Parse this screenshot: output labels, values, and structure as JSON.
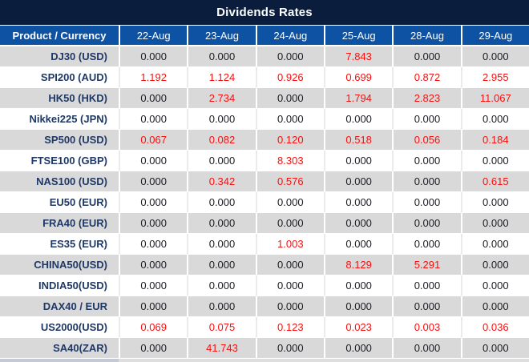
{
  "title": "Dividends Rates",
  "colors": {
    "title_bar_bg": "#0a1d3d",
    "header_bg": "#0e52a3",
    "header_text": "#ffffff",
    "row_gray": "#d9d9d9",
    "row_white": "#ffffff",
    "product_text": "#1f3864",
    "value_text": "#1b1b22",
    "value_red": "#fa0f0f"
  },
  "table": {
    "product_header": "Product / Currency",
    "date_headers": [
      "22-Aug",
      "23-Aug",
      "24-Aug",
      "25-Aug",
      "28-Aug",
      "29-Aug"
    ],
    "rows": [
      {
        "product": "DJ30 (USD)",
        "values": [
          "0.000",
          "0.000",
          "0.000",
          "7.843",
          "0.000",
          "0.000"
        ],
        "red": [
          false,
          false,
          false,
          true,
          false,
          false
        ]
      },
      {
        "product": "SPI200 (AUD)",
        "values": [
          "1.192",
          "1.124",
          "0.926",
          "0.699",
          "0.872",
          "2.955"
        ],
        "red": [
          true,
          true,
          true,
          true,
          true,
          true
        ]
      },
      {
        "product": "HK50 (HKD)",
        "values": [
          "0.000",
          "2.734",
          "0.000",
          "1.794",
          "2.823",
          "11.067"
        ],
        "red": [
          false,
          true,
          false,
          true,
          true,
          true
        ]
      },
      {
        "product": "Nikkei225 (JPN)",
        "values": [
          "0.000",
          "0.000",
          "0.000",
          "0.000",
          "0.000",
          "0.000"
        ],
        "red": [
          false,
          false,
          false,
          false,
          false,
          false
        ]
      },
      {
        "product": "SP500 (USD)",
        "values": [
          "0.067",
          "0.082",
          "0.120",
          "0.518",
          "0.056",
          "0.184"
        ],
        "red": [
          true,
          true,
          true,
          true,
          true,
          true
        ]
      },
      {
        "product": "FTSE100 (GBP)",
        "values": [
          "0.000",
          "0.000",
          "8.303",
          "0.000",
          "0.000",
          "0.000"
        ],
        "red": [
          false,
          false,
          true,
          false,
          false,
          false
        ]
      },
      {
        "product": "NAS100 (USD)",
        "values": [
          "0.000",
          "0.342",
          "0.576",
          "0.000",
          "0.000",
          "0.615"
        ],
        "red": [
          false,
          true,
          true,
          false,
          false,
          true
        ]
      },
      {
        "product": "EU50 (EUR)",
        "values": [
          "0.000",
          "0.000",
          "0.000",
          "0.000",
          "0.000",
          "0.000"
        ],
        "red": [
          false,
          false,
          false,
          false,
          false,
          false
        ]
      },
      {
        "product": "FRA40 (EUR)",
        "values": [
          "0.000",
          "0.000",
          "0.000",
          "0.000",
          "0.000",
          "0.000"
        ],
        "red": [
          false,
          false,
          false,
          false,
          false,
          false
        ]
      },
      {
        "product": "ES35 (EUR)",
        "values": [
          "0.000",
          "0.000",
          "1.003",
          "0.000",
          "0.000",
          "0.000"
        ],
        "red": [
          false,
          false,
          true,
          false,
          false,
          false
        ]
      },
      {
        "product": "CHINA50(USD)",
        "values": [
          "0.000",
          "0.000",
          "0.000",
          "8.129",
          "5.291",
          "0.000"
        ],
        "red": [
          false,
          false,
          false,
          true,
          true,
          false
        ]
      },
      {
        "product": "INDIA50(USD)",
        "values": [
          "0.000",
          "0.000",
          "0.000",
          "0.000",
          "0.000",
          "0.000"
        ],
        "red": [
          false,
          false,
          false,
          false,
          false,
          false
        ]
      },
      {
        "product": "DAX40 / EUR",
        "values": [
          "0.000",
          "0.000",
          "0.000",
          "0.000",
          "0.000",
          "0.000"
        ],
        "red": [
          false,
          false,
          false,
          false,
          false,
          false
        ]
      },
      {
        "product": "US2000(USD)",
        "values": [
          "0.069",
          "0.075",
          "0.123",
          "0.023",
          "0.003",
          "0.036"
        ],
        "red": [
          true,
          true,
          true,
          true,
          true,
          true
        ]
      },
      {
        "product": "SA40(ZAR)",
        "values": [
          "0.000",
          "41.743",
          "0.000",
          "0.000",
          "0.000",
          "0.000"
        ],
        "red": [
          false,
          true,
          false,
          false,
          false,
          false
        ]
      }
    ]
  }
}
